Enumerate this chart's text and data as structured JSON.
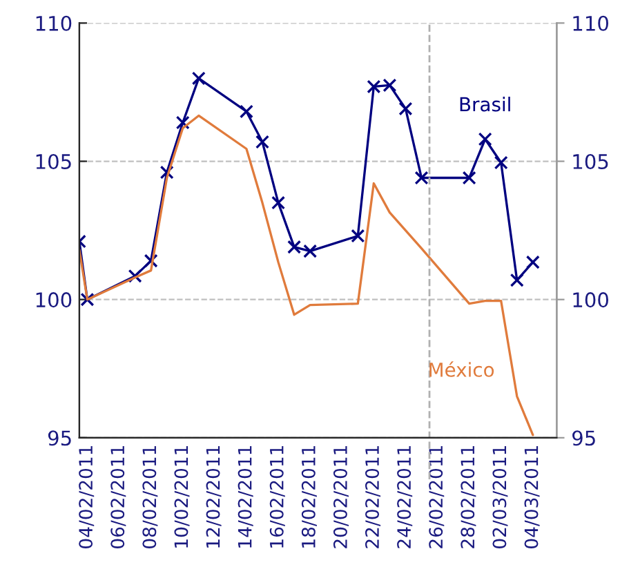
{
  "chart_data": {
    "type": "line",
    "x": [
      "2011-02-03T12:00",
      "2011-02-04",
      "2011-02-07",
      "2011-02-08",
      "2011-02-09",
      "2011-02-10",
      "2011-02-11",
      "2011-02-14",
      "2011-02-15",
      "2011-02-16",
      "2011-02-17",
      "2011-02-18",
      "2011-02-21",
      "2011-02-22",
      "2011-02-23",
      "2011-02-24",
      "2011-02-25",
      "2011-02-28",
      "2011-03-01",
      "2011-03-02",
      "2011-03-03",
      "2011-03-04"
    ],
    "series": [
      {
        "name": "Brasil",
        "color": "#000080",
        "marker": "cross",
        "values": [
          102.1,
          100.0,
          100.85,
          101.4,
          104.6,
          106.4,
          108.0,
          106.8,
          105.7,
          103.5,
          101.9,
          101.75,
          102.3,
          107.7,
          107.75,
          106.9,
          104.4,
          104.4,
          105.8,
          104.95,
          100.7,
          101.35
        ]
      },
      {
        "name": "México",
        "color": "#e07b3c",
        "marker": "none",
        "values": [
          101.8,
          100.0,
          100.8,
          101.05,
          104.4,
          106.2,
          106.65,
          105.45,
          103.5,
          101.35,
          99.45,
          99.8,
          99.85,
          104.2,
          103.15,
          102.5,
          101.85,
          99.85,
          99.95,
          99.95,
          96.5,
          95.1
        ]
      }
    ],
    "xlim": [
      "2011-02-03T12:00",
      "2011-03-05T12:00"
    ],
    "xticks": [
      {
        "value": "2011-02-04",
        "label": "04/02/2011"
      },
      {
        "value": "2011-02-06",
        "label": "06/02/2011"
      },
      {
        "value": "2011-02-08",
        "label": "08/02/2011"
      },
      {
        "value": "2011-02-10",
        "label": "10/02/2011"
      },
      {
        "value": "2011-02-12",
        "label": "12/02/2011"
      },
      {
        "value": "2011-02-14",
        "label": "14/02/2011"
      },
      {
        "value": "2011-02-16",
        "label": "16/02/2011"
      },
      {
        "value": "2011-02-18",
        "label": "18/02/2011"
      },
      {
        "value": "2011-02-20",
        "label": "20/02/2011"
      },
      {
        "value": "2011-02-22",
        "label": "22/02/2011"
      },
      {
        "value": "2011-02-24",
        "label": "24/02/2011"
      },
      {
        "value": "2011-02-26",
        "label": "26/02/2011"
      },
      {
        "value": "2011-02-28",
        "label": "28/02/2011"
      },
      {
        "value": "2011-03-02",
        "label": "02/03/2011"
      },
      {
        "value": "2011-03-04",
        "label": "04/03/2011"
      }
    ],
    "ylim": [
      95,
      110
    ],
    "yticks": [
      95,
      100,
      105,
      110
    ],
    "y2lim": [
      95,
      110
    ],
    "y2ticks": [
      95,
      100,
      105,
      110
    ],
    "grid": "y",
    "legend": false,
    "line_style": "solid",
    "ref_lines": [
      {
        "axis": "x",
        "value": "2011-02-25T12:00",
        "color": "#b0b0b0",
        "line_style": "dashed"
      }
    ]
  }
}
